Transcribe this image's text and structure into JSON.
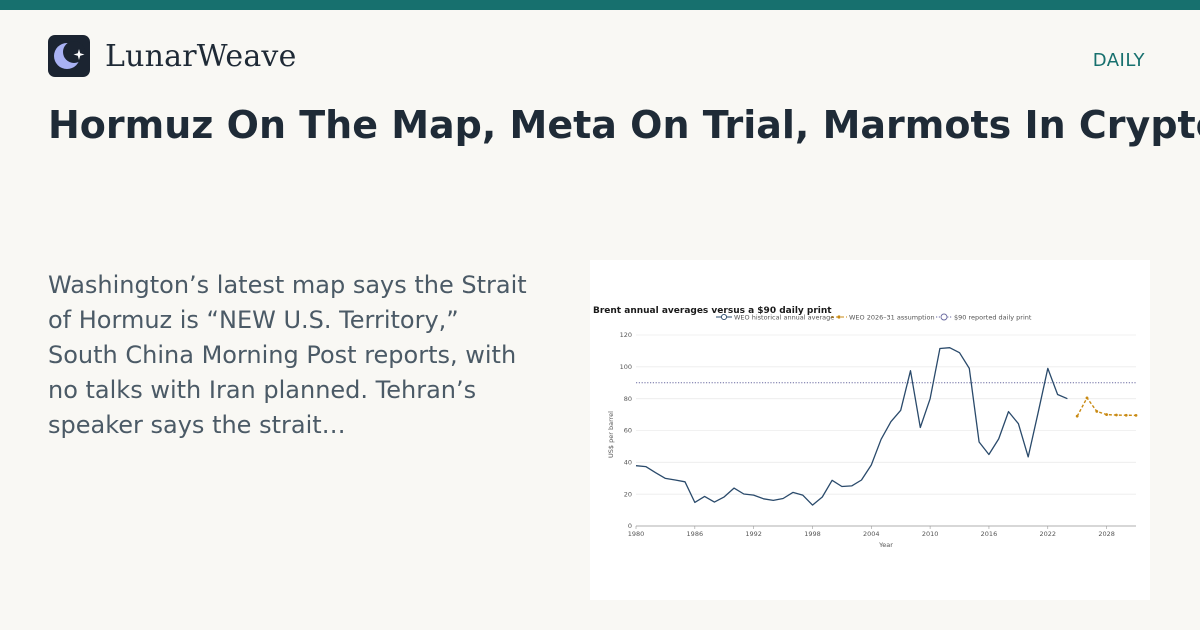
{
  "brand": {
    "name": "LunarWeave"
  },
  "section_label": "DAILY",
  "headline": "Hormuz On The Map, Meta On Trial, Marmots In Crypto",
  "summary": "Washington’s latest map says the Strait of Hormuz is “NEW U.S. Territory,” South China Morning Post reports, with no talks with Iran planned. Tehran’s speaker says the strait…",
  "colors": {
    "accent": "#17706e",
    "historical": "#2a4a6b",
    "assumption": "#c98a13",
    "reference": "#6a6aa0"
  },
  "icons": {
    "logo": "crescent-moon-star-icon"
  },
  "chart_data": {
    "type": "line",
    "title": "Brent annual averages versus a $90 daily print",
    "xlabel": "Year",
    "ylabel": "US$ per barrel",
    "xlim": [
      1980,
      2031
    ],
    "ylim": [
      0,
      120
    ],
    "xticks": [
      1980,
      1986,
      1992,
      1998,
      2004,
      2010,
      2016,
      2022,
      2028
    ],
    "yticks": [
      0,
      20,
      40,
      60,
      80,
      100,
      120
    ],
    "grid": true,
    "legend_position": "top",
    "series": [
      {
        "name": "WEO historical annual average",
        "style": "solid",
        "x": [
          1980,
          1981,
          1982,
          1983,
          1984,
          1985,
          1986,
          1987,
          1988,
          1989,
          1990,
          1991,
          1992,
          1993,
          1994,
          1995,
          1996,
          1997,
          1998,
          1999,
          2000,
          2001,
          2002,
          2003,
          2004,
          2005,
          2006,
          2007,
          2008,
          2009,
          2010,
          2011,
          2012,
          2013,
          2014,
          2015,
          2016,
          2017,
          2018,
          2019,
          2020,
          2021,
          2022,
          2023,
          2024
        ],
        "y": [
          37.9,
          37.3,
          33.5,
          29.9,
          28.9,
          27.8,
          14.8,
          18.6,
          15.0,
          18.3,
          23.8,
          20.1,
          19.4,
          17.1,
          16.1,
          17.3,
          21.1,
          19.4,
          13.1,
          18.2,
          28.7,
          24.8,
          25.2,
          28.9,
          38.3,
          54.5,
          65.5,
          72.7,
          97.6,
          61.9,
          79.9,
          111.5,
          112.0,
          108.9,
          99.0,
          52.8,
          44.9,
          54.7,
          71.9,
          64.3,
          43.4,
          70.9,
          99.0,
          82.6,
          80.0
        ]
      },
      {
        "name": "WEO 2026–31 assumption",
        "style": "dashed",
        "x": [
          2025,
          2026,
          2027,
          2028,
          2029,
          2030,
          2031
        ],
        "y": [
          69.0,
          80.5,
          72.0,
          70.0,
          69.7,
          69.6,
          69.5
        ]
      },
      {
        "name": "$90 reported daily print",
        "style": "dotted",
        "x": [
          1980,
          2031
        ],
        "y": [
          90,
          90
        ]
      }
    ]
  }
}
